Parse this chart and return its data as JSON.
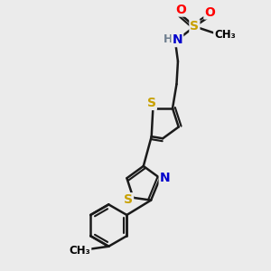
{
  "bg_color": "#ebebeb",
  "atom_colors": {
    "S": "#c8a000",
    "N": "#0000cc",
    "O": "#ff0000",
    "C": "#000000",
    "H": "#708090"
  },
  "bond_color": "#1a1a1a",
  "bond_width": 1.8,
  "figsize": [
    3.0,
    3.0
  ],
  "dpi": 100
}
